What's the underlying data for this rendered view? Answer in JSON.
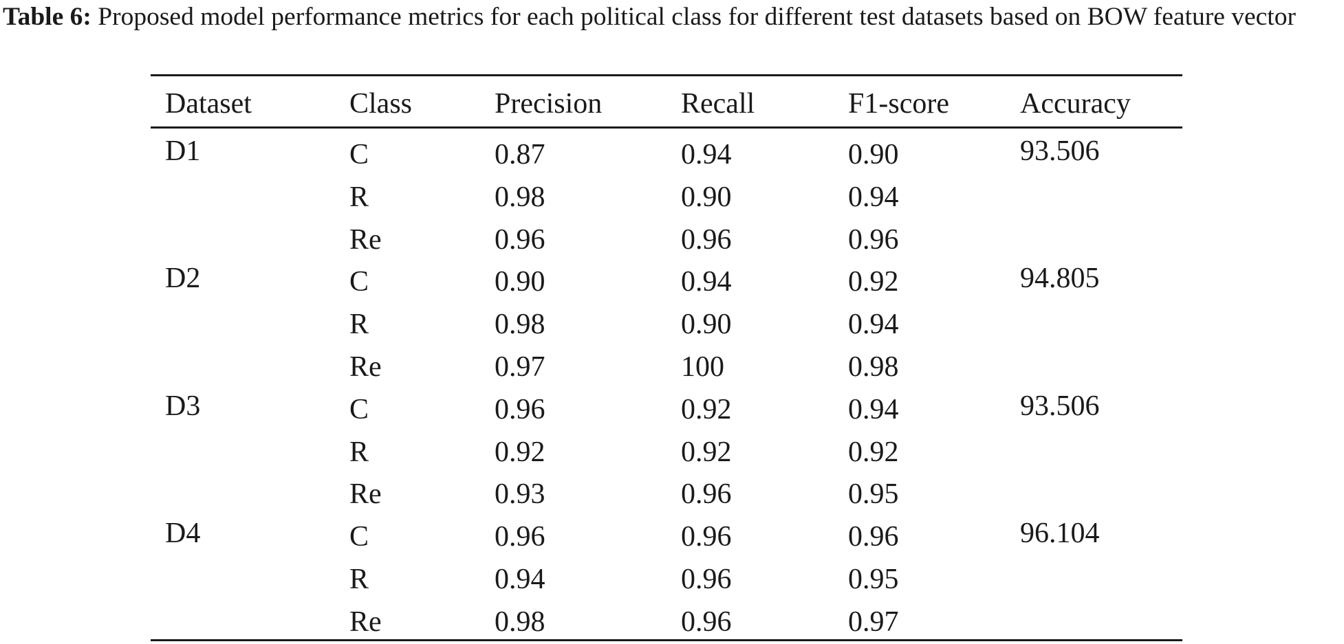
{
  "caption": {
    "label": "Table 6:",
    "text": " Proposed model performance metrics for each political class for different test datasets based on BOW feature vector"
  },
  "table": {
    "headers": {
      "dataset": "Dataset",
      "class": "Class",
      "precision": "Precision",
      "recall": "Recall",
      "f1": "F1-score",
      "accuracy": "Accuracy"
    },
    "rows": [
      {
        "dataset": "D1",
        "class": "C",
        "precision": "0.87",
        "recall": "0.94",
        "f1": "0.90",
        "accuracy": "93.506"
      },
      {
        "dataset": "",
        "class": "R",
        "precision": "0.98",
        "recall": "0.90",
        "f1": "0.94",
        "accuracy": ""
      },
      {
        "dataset": "",
        "class": "Re",
        "precision": "0.96",
        "recall": "0.96",
        "f1": "0.96",
        "accuracy": ""
      },
      {
        "dataset": "D2",
        "class": "C",
        "precision": "0.90",
        "recall": "0.94",
        "f1": "0.92",
        "accuracy": "94.805"
      },
      {
        "dataset": "",
        "class": "R",
        "precision": "0.98",
        "recall": "0.90",
        "f1": "0.94",
        "accuracy": ""
      },
      {
        "dataset": "",
        "class": "Re",
        "precision": "0.97",
        "recall": "100",
        "f1": "0.98",
        "accuracy": ""
      },
      {
        "dataset": "D3",
        "class": "C",
        "precision": "0.96",
        "recall": "0.92",
        "f1": "0.94",
        "accuracy": "93.506"
      },
      {
        "dataset": "",
        "class": "R",
        "precision": "0.92",
        "recall": "0.92",
        "f1": "0.92",
        "accuracy": ""
      },
      {
        "dataset": "",
        "class": "Re",
        "precision": "0.93",
        "recall": "0.96",
        "f1": "0.95",
        "accuracy": ""
      },
      {
        "dataset": "D4",
        "class": "C",
        "precision": "0.96",
        "recall": "0.96",
        "f1": "0.96",
        "accuracy": "96.104"
      },
      {
        "dataset": "",
        "class": "R",
        "precision": "0.94",
        "recall": "0.96",
        "f1": "0.95",
        "accuracy": ""
      },
      {
        "dataset": "",
        "class": "Re",
        "precision": "0.98",
        "recall": "0.96",
        "f1": "0.97",
        "accuracy": ""
      }
    ]
  }
}
